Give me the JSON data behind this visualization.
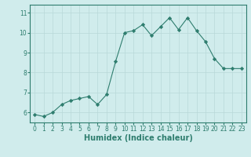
{
  "x": [
    0,
    1,
    2,
    3,
    4,
    5,
    6,
    7,
    8,
    9,
    10,
    11,
    12,
    13,
    14,
    15,
    16,
    17,
    18,
    19,
    20,
    21,
    22,
    23
  ],
  "y": [
    5.9,
    5.8,
    6.0,
    6.4,
    6.6,
    6.7,
    6.8,
    6.4,
    6.9,
    8.55,
    10.0,
    10.1,
    10.4,
    9.85,
    10.3,
    10.75,
    10.15,
    10.75,
    10.1,
    9.55,
    8.7,
    8.2,
    8.2,
    8.2
  ],
  "line_color": "#2e7d6e",
  "marker": "D",
  "marker_size": 2.2,
  "bg_color": "#d0ecec",
  "grid_color": "#b8d8d8",
  "xlabel": "Humidex (Indice chaleur)",
  "xlabel_fontsize": 7,
  "tick_fontsize": 5.5,
  "ylim": [
    5.5,
    11.4
  ],
  "xlim": [
    -0.5,
    23.5
  ],
  "yticks": [
    6,
    7,
    8,
    9,
    10,
    11
  ],
  "xticks": [
    0,
    1,
    2,
    3,
    4,
    5,
    6,
    7,
    8,
    9,
    10,
    11,
    12,
    13,
    14,
    15,
    16,
    17,
    18,
    19,
    20,
    21,
    22,
    23
  ]
}
